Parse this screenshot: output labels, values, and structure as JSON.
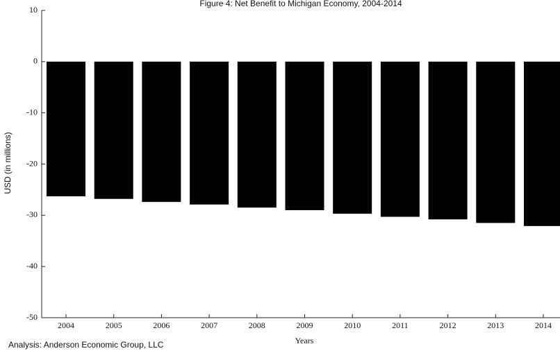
{
  "chart_data": {
    "type": "bar",
    "title": "Figure 4: Net Benefit to Michigan Economy, 2004-2014",
    "x_label": "Years",
    "y_label": "USD (in millions)",
    "note": "Analysis: Anderson Economic Group, LLC",
    "categories": [
      "2004",
      "2005",
      "2006",
      "2007",
      "2008",
      "2009",
      "2010",
      "2011",
      "2012",
      "2013",
      "2014"
    ],
    "values": [
      -26.3,
      -26.8,
      -27.4,
      -27.9,
      -28.5,
      -29.0,
      -29.7,
      -30.3,
      -30.8,
      -31.5,
      -32.1
    ],
    "color": "#000000",
    "ylim": [
      -50,
      10
    ],
    "yticks": [
      -50,
      -40,
      -30,
      -20,
      -10,
      0,
      10
    ],
    "grid": false
  }
}
